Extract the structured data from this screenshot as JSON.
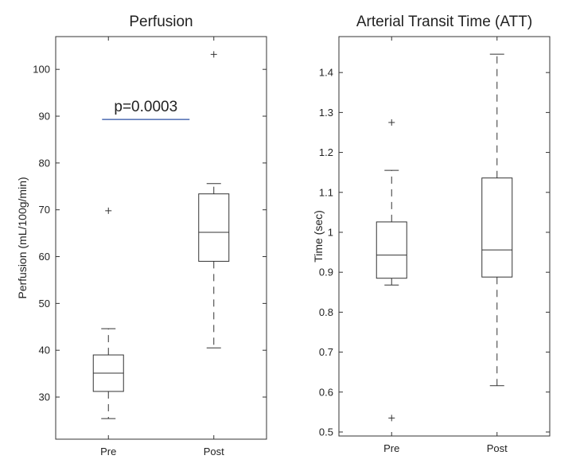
{
  "chart_data": [
    {
      "type": "box",
      "title": "Perfusion",
      "xlabel": "",
      "ylabel": "Perfusion (mL/100g/min)",
      "ylim": [
        21,
        107
      ],
      "yticks": [
        30,
        40,
        50,
        60,
        70,
        80,
        90,
        100
      ],
      "grid": false,
      "categories": [
        "Pre",
        "Post"
      ],
      "boxes": [
        {
          "category": "Pre",
          "whisker_low": 25.4,
          "q1": 31.2,
          "median": 35.1,
          "q3": 39.0,
          "whisker_high": 44.6,
          "outliers": [
            69.8
          ]
        },
        {
          "category": "Post",
          "whisker_low": 40.5,
          "q1": 59.0,
          "median": 65.2,
          "q3": 73.4,
          "whisker_high": 75.6,
          "outliers": [
            103.2
          ]
        }
      ],
      "annotation": {
        "text": "p=0.0003",
        "y": 89.3,
        "x_from": 0.44,
        "x_to": 1.27,
        "line_color": "#2b4fa3"
      }
    },
    {
      "type": "box",
      "title": "Arterial Transit Time (ATT)",
      "xlabel": "",
      "ylabel": "Time (sec)",
      "ylim": [
        0.49,
        1.49
      ],
      "yticks": [
        0.5,
        0.6,
        0.7,
        0.8,
        0.9,
        1,
        1.1,
        1.2,
        1.3,
        1.4
      ],
      "grid": false,
      "categories": [
        "Pre",
        "Post"
      ],
      "boxes": [
        {
          "category": "Pre",
          "whisker_low": 0.868,
          "q1": 0.885,
          "median": 0.943,
          "q3": 1.026,
          "whisker_high": 1.155,
          "outliers": [
            1.275,
            0.535
          ]
        },
        {
          "category": "Post",
          "whisker_low": 0.616,
          "q1": 0.888,
          "median": 0.956,
          "q3": 1.136,
          "whisker_high": 1.446,
          "outliers": []
        }
      ]
    }
  ]
}
